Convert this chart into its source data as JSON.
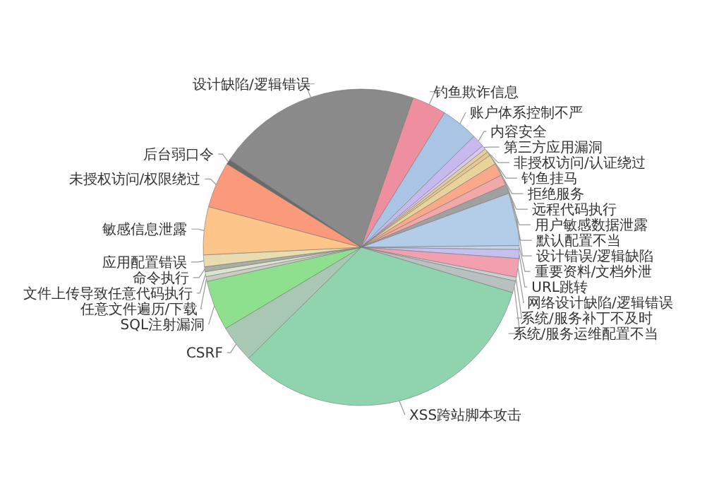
{
  "chart_data": {
    "type": "pie",
    "categories": [
      "设计缺陷/逻辑错误",
      "钓鱼欺诈信息",
      "账户体系控制不严",
      "内容安全",
      "第三方应用漏洞",
      "非授权访问/认证绕过",
      "钓鱼挂马",
      "拒绝服务",
      "远程代码执行",
      "用户敏感数据泄露",
      "默认配置不当",
      "设计错误/逻辑缺陷",
      "重要资料/文档外泄",
      "URL跳转",
      "网络设计缺陷/逻辑错误",
      "系统/服务补丁不及时",
      "系统/服务运维配置不当",
      "XSS跨站脚本攻击",
      "CSRF",
      "SQL注射漏洞",
      "任意文件遍历/下载",
      "文件上传导致任意代码执行",
      "命令执行",
      "应用配置错误",
      "敏感信息泄露",
      "未授权访问/权限绕过",
      "后台弱口令"
    ],
    "values": [
      21.0,
      3.5,
      3.8,
      1.3,
      0.4,
      0.4,
      0.4,
      1.0,
      1.3,
      1.1,
      0.9,
      5.4,
      0.4,
      0.9,
      1.9,
      0.4,
      1.2,
      33.0,
      3.8,
      5.1,
      0.5,
      0.5,
      0.5,
      1.2,
      4.9,
      4.7,
      0.5
    ],
    "colors": [
      "#8a8a8a",
      "#ee8fa0",
      "#a9c4e4",
      "#c7b8ee",
      "#d8c8f0",
      "#e0d0a0",
      "#e8c890",
      "#e8d49a",
      "#f9a88a",
      "#f0a8a8",
      "#a0a0a0",
      "#b3cce8",
      "#c0d4ec",
      "#c5c0f0",
      "#f2a0b0",
      "#c8d0d0",
      "#b8c0c0",
      "#8fd4ae",
      "#a8c8b4",
      "#8ee08e",
      "#c8cfc0",
      "#dde2d2",
      "#a8b0a0",
      "#e9dcb0",
      "#fdc58a",
      "#fb9a7a",
      "#6a6a6a"
    ]
  }
}
